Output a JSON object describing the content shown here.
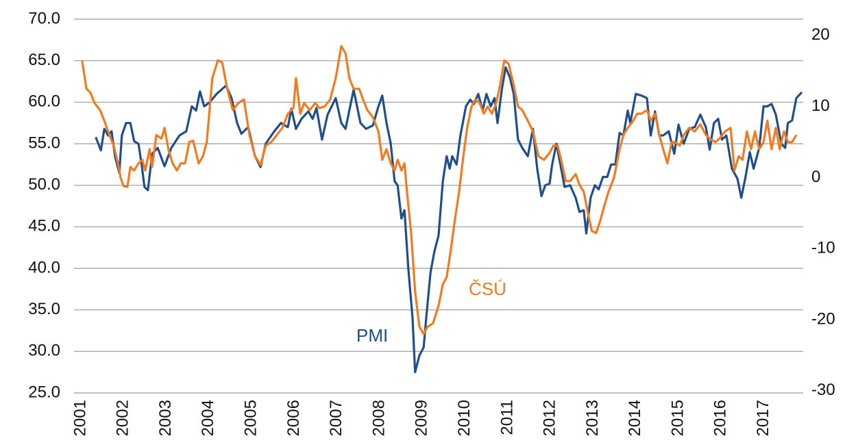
{
  "chart_data": {
    "type": "line",
    "xlim": [
      2000.84,
      2017.92
    ],
    "xticks": [
      2001,
      2002,
      2003,
      2004,
      2005,
      2006,
      2007,
      2008,
      2009,
      2010,
      2011,
      2012,
      2013,
      2014,
      2015,
      2016,
      2017
    ],
    "ylim": [
      25,
      70
    ],
    "yticks": [
      {
        "value": 25,
        "label": "25.0"
      },
      {
        "value": 30,
        "label": "30.0"
      },
      {
        "value": 35,
        "label": "35.0"
      },
      {
        "value": 40,
        "label": "40.0"
      },
      {
        "value": 45,
        "label": "45.0"
      },
      {
        "value": 50,
        "label": "50.0"
      },
      {
        "value": 55,
        "label": "55.0"
      },
      {
        "value": 60,
        "label": "60.0"
      },
      {
        "value": 65,
        "label": "65.0"
      },
      {
        "value": 70,
        "label": "70.0"
      }
    ],
    "y2lim": [
      -30.3,
      22.3
    ],
    "y2ticks": [
      -30,
      -20,
      -10,
      0,
      10,
      20
    ],
    "grid": true,
    "annotations": [
      {
        "text": "PMI",
        "color": "#1f4e8c"
      },
      {
        "text": "ČSÚ",
        "color": "#f47a20"
      }
    ],
    "series": [
      {
        "name": "PMI",
        "color": "#1f4e8c",
        "axis": "y",
        "x": [
          2001.35,
          2001.47,
          2001.55,
          2001.64,
          2001.72,
          2001.8,
          2001.9,
          2001.96,
          2002.06,
          2002.16,
          2002.25,
          2002.35,
          2002.43,
          2002.49,
          2002.57,
          2002.67,
          2002.8,
          2002.96,
          2003.12,
          2003.31,
          2003.47,
          2003.6,
          2003.7,
          2003.79,
          2003.89,
          2004.02,
          2004.18,
          2004.4,
          2004.53,
          2004.66,
          2004.76,
          2004.92,
          2005.08,
          2005.21,
          2005.33,
          2005.53,
          2005.69,
          2005.85,
          2005.93,
          2006.04,
          2006.17,
          2006.33,
          2006.43,
          2006.52,
          2006.65,
          2006.78,
          2006.97,
          2007.1,
          2007.2,
          2007.39,
          2007.55,
          2007.68,
          2007.84,
          2007.97,
          2008.06,
          2008.16,
          2008.26,
          2008.35,
          2008.42,
          2008.51,
          2008.58,
          2008.67,
          2008.77,
          2008.83,
          2008.93,
          2009.03,
          2009.09,
          2009.19,
          2009.28,
          2009.38,
          2009.48,
          2009.57,
          2009.64,
          2009.7,
          2009.8,
          2009.89,
          2010.02,
          2010.12,
          2010.21,
          2010.31,
          2010.41,
          2010.5,
          2010.6,
          2010.69,
          2010.76,
          2010.86,
          2010.95,
          2011.05,
          2011.14,
          2011.24,
          2011.34,
          2011.47,
          2011.59,
          2011.69,
          2011.79,
          2011.88,
          2011.98,
          2012.04,
          2012.14,
          2012.24,
          2012.33,
          2012.46,
          2012.59,
          2012.68,
          2012.78,
          2012.84,
          2012.94,
          2013.04,
          2013.13,
          2013.23,
          2013.33,
          2013.42,
          2013.52,
          2013.62,
          2013.71,
          2013.81,
          2013.87,
          2014.0,
          2014.13,
          2014.26,
          2014.35,
          2014.45,
          2014.55,
          2014.64,
          2014.77,
          2014.9,
          2015.0,
          2015.12,
          2015.25,
          2015.38,
          2015.51,
          2015.64,
          2015.73,
          2015.83,
          2015.93,
          2016.02,
          2016.12,
          2016.25,
          2016.38,
          2016.47,
          2016.57,
          2016.67,
          2016.76,
          2016.89,
          2016.99,
          2017.08,
          2017.18,
          2017.28,
          2017.41,
          2017.5,
          2017.56,
          2017.66,
          2017.76,
          2017.89
        ],
        "values": [
          55.8,
          54.2,
          56.8,
          56,
          56.5,
          53.5,
          51.5,
          56,
          57.5,
          57.5,
          55.3,
          55,
          52.3,
          49.8,
          49.4,
          53.8,
          54.5,
          52.3,
          54.5,
          56,
          56.5,
          59.5,
          59,
          61.3,
          59.5,
          60,
          61,
          62,
          60.5,
          57.5,
          56.2,
          57,
          53.5,
          52.2,
          55,
          56.5,
          57.5,
          57,
          59.2,
          56.8,
          58,
          58.9,
          58,
          59.3,
          55.5,
          58.5,
          60.5,
          57.5,
          56.8,
          61.5,
          57.5,
          56.8,
          57.2,
          59.5,
          60.8,
          57.5,
          55,
          50.5,
          50,
          46,
          47,
          40,
          34,
          27.5,
          29.5,
          30.5,
          34,
          39.5,
          42,
          44,
          50.5,
          53.5,
          52,
          53.5,
          52.5,
          56,
          59.5,
          60.3,
          59.8,
          61,
          59,
          61,
          59.5,
          60.5,
          57.5,
          61.5,
          64.2,
          63,
          61,
          55.5,
          54.5,
          53.5,
          56.8,
          52,
          48.7,
          50,
          50.2,
          52.5,
          55,
          52.3,
          49.8,
          50,
          48.5,
          46.8,
          47,
          44.2,
          48.5,
          50,
          49.5,
          51,
          51,
          52.5,
          52.5,
          56.3,
          56,
          59,
          57.5,
          61,
          60.8,
          60.5,
          56,
          58.9,
          56,
          56,
          56.5,
          53.8,
          57.3,
          55,
          56.8,
          57,
          58.5,
          57,
          54.3,
          57.5,
          58,
          55.5,
          56,
          52,
          50.8,
          48.5,
          51,
          54,
          52,
          54.5,
          59.5,
          59.5,
          59.8,
          58.5,
          55,
          54.5,
          57.5,
          57.8,
          60.5,
          61.2
        ]
      },
      {
        "name": "ČSÚ",
        "color": "#f47a20",
        "axis": "y2",
        "x": [
          2001.03,
          2001.13,
          2001.22,
          2001.32,
          2001.45,
          2001.55,
          2001.67,
          2001.77,
          2001.87,
          2001.93,
          2002.0,
          2002.09,
          2002.16,
          2002.25,
          2002.35,
          2002.44,
          2002.51,
          2002.61,
          2002.67,
          2002.77,
          2002.89,
          2002.96,
          2003.05,
          2003.15,
          2003.25,
          2003.34,
          2003.44,
          2003.54,
          2003.63,
          2003.76,
          2003.86,
          2003.95,
          2004.08,
          2004.21,
          2004.31,
          2004.43,
          2004.56,
          2004.69,
          2004.82,
          2004.95,
          2005.08,
          2005.21,
          2005.33,
          2005.46,
          2005.59,
          2005.72,
          2005.85,
          2005.98,
          2006.04,
          2006.14,
          2006.23,
          2006.36,
          2006.49,
          2006.59,
          2006.71,
          2006.84,
          2006.97,
          2007.1,
          2007.2,
          2007.29,
          2007.39,
          2007.52,
          2007.61,
          2007.71,
          2007.84,
          2007.97,
          2008.06,
          2008.16,
          2008.26,
          2008.35,
          2008.42,
          2008.51,
          2008.58,
          2008.64,
          2008.74,
          2008.83,
          2008.93,
          2009.03,
          2009.12,
          2009.25,
          2009.38,
          2009.48,
          2009.57,
          2009.67,
          2009.76,
          2009.86,
          2009.96,
          2010.05,
          2010.15,
          2010.24,
          2010.34,
          2010.44,
          2010.53,
          2010.63,
          2010.73,
          2010.82,
          2010.92,
          2011.02,
          2011.14,
          2011.24,
          2011.34,
          2011.47,
          2011.59,
          2011.72,
          2011.85,
          2011.98,
          2012.07,
          2012.17,
          2012.27,
          2012.36,
          2012.46,
          2012.59,
          2012.68,
          2012.78,
          2012.88,
          2012.97,
          2013.07,
          2013.17,
          2013.26,
          2013.36,
          2013.49,
          2013.62,
          2013.71,
          2013.81,
          2013.94,
          2014.03,
          2014.13,
          2014.26,
          2014.35,
          2014.45,
          2014.55,
          2014.64,
          2014.74,
          2014.84,
          2014.93,
          2015.03,
          2015.12,
          2015.25,
          2015.38,
          2015.51,
          2015.64,
          2015.73,
          2015.86,
          2015.96,
          2016.09,
          2016.22,
          2016.31,
          2016.41,
          2016.5,
          2016.6,
          2016.7,
          2016.79,
          2016.89,
          2016.99,
          2017.08,
          2017.18,
          2017.28,
          2017.37,
          2017.47,
          2017.56,
          2017.66,
          2017.76
        ],
        "values": [
          16.5,
          12.5,
          12,
          10.5,
          9.5,
          8,
          6,
          4.5,
          2,
          0,
          -1.2,
          -1.3,
          1.5,
          1,
          2,
          2.5,
          1,
          4,
          1.5,
          6,
          5.5,
          7,
          4,
          2,
          1,
          2,
          2,
          5,
          5.2,
          2,
          3,
          5,
          14,
          16.5,
          16.2,
          12.5,
          9.5,
          10.5,
          11,
          6,
          3,
          1.8,
          4.5,
          5,
          6,
          7,
          9,
          9.8,
          14,
          9,
          10.5,
          9.5,
          10.5,
          9.8,
          10,
          11,
          14,
          18.5,
          17.5,
          14,
          12.5,
          12.5,
          11,
          9.5,
          8.5,
          6.5,
          2.5,
          4,
          2,
          1,
          2.5,
          1,
          2,
          -2,
          -8,
          -16,
          -21,
          -22,
          -21,
          -20.5,
          -18,
          -15,
          -14,
          -10,
          -6,
          -2,
          3,
          7,
          10,
          11,
          10.5,
          9,
          10,
          9,
          10.5,
          13,
          16.5,
          16,
          13,
          10,
          9.5,
          8,
          6.5,
          3,
          2.5,
          3.5,
          4.5,
          4.5,
          2,
          -0.5,
          -0.5,
          0.5,
          -1,
          -2,
          -5,
          -7.5,
          -7.8,
          -6,
          -4,
          -2,
          0,
          4,
          6,
          7,
          8,
          9,
          9,
          9.5,
          8,
          9,
          6,
          4,
          2,
          5,
          5,
          4.5,
          6,
          7,
          6.5,
          7.5,
          6,
          5.5,
          5,
          5.5,
          6.5,
          7,
          1,
          3,
          2.5,
          6.5,
          4,
          6.5,
          4,
          5,
          8,
          4,
          7,
          4,
          6.5,
          5,
          5,
          6
        ]
      }
    ]
  }
}
